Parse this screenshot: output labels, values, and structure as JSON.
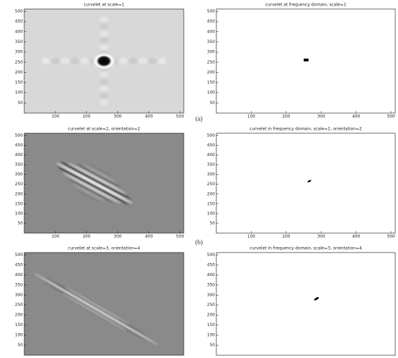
{
  "chart_data": [
    {
      "type": "image",
      "title": "curvelet at scale=1",
      "xlim": [
        0,
        512
      ],
      "ylim": [
        0,
        512
      ],
      "xticks": [
        100,
        200,
        300,
        400,
        500
      ],
      "yticks": [
        50,
        100,
        150,
        200,
        250,
        300,
        350,
        400,
        450,
        500
      ]
    },
    {
      "type": "image",
      "title": "curvelet at frequency domain, scale=1",
      "xlim": [
        0,
        512
      ],
      "ylim": [
        0,
        512
      ],
      "xticks": [
        100,
        200,
        300,
        400,
        500
      ],
      "yticks": [
        50,
        100,
        150,
        200,
        250,
        300,
        350,
        400,
        450,
        500
      ]
    },
    {
      "type": "image",
      "title": "curvelet at scale=2, orientation=2",
      "xlim": [
        0,
        512
      ],
      "ylim": [
        0,
        512
      ],
      "xticks": [
        100,
        200,
        300,
        400,
        500
      ],
      "yticks": [
        50,
        100,
        150,
        200,
        250,
        300,
        350,
        400,
        450,
        500
      ]
    },
    {
      "type": "image",
      "title": "curvelet in frequency domain, scale=2, orientation=2",
      "xlim": [
        0,
        512
      ],
      "ylim": [
        0,
        512
      ],
      "xticks": [
        100,
        200,
        300,
        400,
        500
      ],
      "yticks": [
        50,
        100,
        150,
        200,
        250,
        300,
        350,
        400,
        450,
        500
      ]
    },
    {
      "type": "image",
      "title": "curvelet at scale=3, orientation=4",
      "xlim": [
        0,
        512
      ],
      "ylim": [
        0,
        512
      ],
      "yticks": [
        50,
        100,
        150,
        200,
        250,
        300,
        350,
        400,
        450,
        500
      ]
    },
    {
      "type": "image",
      "title": "curvelet in frequency domain, scale=3, orientation=4",
      "xlim": [
        0,
        512
      ],
      "ylim": [
        0,
        512
      ],
      "yticks": [
        50,
        100,
        150,
        200,
        250,
        300,
        350,
        400,
        450,
        500
      ]
    }
  ],
  "captions": [
    "(a)",
    "(b)"
  ]
}
